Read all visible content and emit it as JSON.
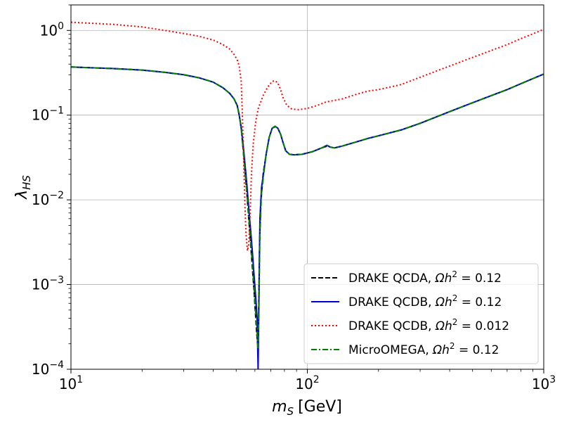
{
  "chart_data": {
    "type": "line",
    "xlabel_main": "m",
    "xlabel_sub": "S",
    "xlabel_unit": "[GeV]",
    "ylabel_main": "λ",
    "ylabel_sub": "HS",
    "xscale": "log",
    "yscale": "log",
    "xlim": [
      10,
      1000
    ],
    "ylim": [
      0.0001,
      2
    ],
    "grid": true,
    "legend_position": "lower-right",
    "x_ticks": [
      {
        "value": 10,
        "base": "10",
        "exp": "1"
      },
      {
        "value": 100,
        "base": "10",
        "exp": "2"
      },
      {
        "value": 1000,
        "base": "10",
        "exp": "3"
      }
    ],
    "y_ticks": [
      {
        "value": 0.0001,
        "base": "10",
        "exp": "−4"
      },
      {
        "value": 0.001,
        "base": "10",
        "exp": "−3"
      },
      {
        "value": 0.01,
        "base": "10",
        "exp": "−2"
      },
      {
        "value": 0.1,
        "base": "10",
        "exp": "−1"
      },
      {
        "value": 1,
        "base": "10",
        "exp": "0"
      }
    ],
    "series": [
      {
        "name": "DRAKE QCDA, Ωh² = 0.12",
        "legend_prefix": "DRAKE QCDA, ",
        "legend_math": "Ωh",
        "legend_sup": "2",
        "legend_suffix": " = 0.12",
        "color": "#000000",
        "style": "dashed",
        "points": [
          [
            10,
            0.37
          ],
          [
            15,
            0.355
          ],
          [
            20,
            0.34
          ],
          [
            25,
            0.32
          ],
          [
            30,
            0.3
          ],
          [
            35,
            0.275
          ],
          [
            40,
            0.245
          ],
          [
            44,
            0.21
          ],
          [
            47,
            0.18
          ],
          [
            49,
            0.155
          ],
          [
            50.5,
            0.13
          ],
          [
            51.5,
            0.1
          ],
          [
            52.5,
            0.07
          ],
          [
            53.5,
            0.04
          ],
          [
            54.5,
            0.022
          ],
          [
            55.5,
            0.012
          ],
          [
            56.5,
            0.006
          ],
          [
            57.5,
            0.0032
          ],
          [
            58.5,
            0.0016
          ],
          [
            59.5,
            0.00085
          ],
          [
            60.5,
            0.0004
          ],
          [
            61,
            0.00028
          ],
          [
            61.6,
            0.0002
          ],
          [
            62.2,
            0.0004
          ],
          [
            62.8,
            0.003
          ],
          [
            63.5,
            0.009
          ],
          [
            65,
            0.02
          ],
          [
            67,
            0.035
          ],
          [
            69,
            0.055
          ],
          [
            71,
            0.07
          ],
          [
            73,
            0.073
          ],
          [
            75,
            0.07
          ],
          [
            77,
            0.06
          ],
          [
            79,
            0.047
          ],
          [
            81,
            0.038
          ],
          [
            84,
            0.0345
          ],
          [
            88,
            0.034
          ],
          [
            95,
            0.0345
          ],
          [
            105,
            0.037
          ],
          [
            115,
            0.041
          ],
          [
            121,
            0.043
          ],
          [
            125,
            0.042
          ],
          [
            130,
            0.041
          ],
          [
            140,
            0.043
          ],
          [
            160,
            0.048
          ],
          [
            180,
            0.053
          ],
          [
            200,
            0.057
          ],
          [
            250,
            0.067
          ],
          [
            300,
            0.08
          ],
          [
            400,
            0.11
          ],
          [
            500,
            0.14
          ],
          [
            600,
            0.17
          ],
          [
            700,
            0.2
          ],
          [
            800,
            0.235
          ],
          [
            900,
            0.27
          ],
          [
            1000,
            0.305
          ]
        ]
      },
      {
        "name": "DRAKE QCDB, Ωh² = 0.12",
        "legend_prefix": "DRAKE QCDB, ",
        "legend_math": "Ωh",
        "legend_sup": "2",
        "legend_suffix": " = 0.12",
        "color": "#0000cc",
        "style": "solid",
        "points": [
          [
            10,
            0.37
          ],
          [
            15,
            0.355
          ],
          [
            20,
            0.34
          ],
          [
            25,
            0.32
          ],
          [
            30,
            0.3
          ],
          [
            35,
            0.275
          ],
          [
            40,
            0.245
          ],
          [
            44,
            0.21
          ],
          [
            47,
            0.18
          ],
          [
            49,
            0.155
          ],
          [
            50.5,
            0.13
          ],
          [
            51.5,
            0.1
          ],
          [
            52.5,
            0.072
          ],
          [
            53.5,
            0.045
          ],
          [
            54.5,
            0.026
          ],
          [
            55.5,
            0.015
          ],
          [
            56.5,
            0.008
          ],
          [
            57.5,
            0.0045
          ],
          [
            58.5,
            0.0025
          ],
          [
            59.5,
            0.0013
          ],
          [
            60.5,
            0.0007
          ],
          [
            61.3,
            0.0004
          ],
          [
            61.9,
            0.0001
          ],
          [
            62.5,
            0.001
          ],
          [
            63,
            0.006
          ],
          [
            64,
            0.014
          ],
          [
            65.5,
            0.022
          ],
          [
            67,
            0.035
          ],
          [
            69,
            0.055
          ],
          [
            71,
            0.07
          ],
          [
            73,
            0.074
          ],
          [
            75,
            0.07
          ],
          [
            77,
            0.06
          ],
          [
            79,
            0.047
          ],
          [
            81,
            0.038
          ],
          [
            84,
            0.0345
          ],
          [
            88,
            0.034
          ],
          [
            95,
            0.0345
          ],
          [
            105,
            0.037
          ],
          [
            115,
            0.041
          ],
          [
            121,
            0.044
          ],
          [
            125,
            0.042
          ],
          [
            130,
            0.041
          ],
          [
            140,
            0.043
          ],
          [
            160,
            0.048
          ],
          [
            180,
            0.053
          ],
          [
            200,
            0.057
          ],
          [
            250,
            0.067
          ],
          [
            300,
            0.08
          ],
          [
            400,
            0.11
          ],
          [
            500,
            0.14
          ],
          [
            600,
            0.17
          ],
          [
            700,
            0.2
          ],
          [
            800,
            0.235
          ],
          [
            900,
            0.27
          ],
          [
            1000,
            0.305
          ]
        ]
      },
      {
        "name": "DRAKE QCDB, Ωh² = 0.012",
        "legend_prefix": "DRAKE QCDB, ",
        "legend_math": "Ωh",
        "legend_sup": "2",
        "legend_suffix": " = 0.012",
        "color": "#ff0000",
        "style": "dotted",
        "points": [
          [
            10,
            1.25
          ],
          [
            15,
            1.18
          ],
          [
            20,
            1.1
          ],
          [
            25,
            1.0
          ],
          [
            30,
            0.92
          ],
          [
            35,
            0.85
          ],
          [
            40,
            0.77
          ],
          [
            44,
            0.68
          ],
          [
            47,
            0.6
          ],
          [
            49,
            0.52
          ],
          [
            50.5,
            0.45
          ],
          [
            51.5,
            0.38
          ],
          [
            52.5,
            0.25
          ],
          [
            53,
            0.12
          ],
          [
            53.5,
            0.05
          ],
          [
            54,
            0.02
          ],
          [
            54.5,
            0.008
          ],
          [
            55,
            0.004
          ],
          [
            55.8,
            0.0025
          ],
          [
            56.5,
            0.003
          ],
          [
            57.3,
            0.007
          ],
          [
            58,
            0.02
          ],
          [
            59,
            0.045
          ],
          [
            60.5,
            0.085
          ],
          [
            62,
            0.12
          ],
          [
            65,
            0.17
          ],
          [
            68,
            0.215
          ],
          [
            71,
            0.25
          ],
          [
            73,
            0.255
          ],
          [
            75,
            0.24
          ],
          [
            77,
            0.2
          ],
          [
            79,
            0.16
          ],
          [
            82,
            0.13
          ],
          [
            86,
            0.118
          ],
          [
            92,
            0.116
          ],
          [
            100,
            0.12
          ],
          [
            110,
            0.13
          ],
          [
            120,
            0.143
          ],
          [
            140,
            0.155
          ],
          [
            160,
            0.175
          ],
          [
            180,
            0.192
          ],
          [
            200,
            0.2
          ],
          [
            250,
            0.23
          ],
          [
            300,
            0.28
          ],
          [
            400,
            0.38
          ],
          [
            500,
            0.48
          ],
          [
            600,
            0.58
          ],
          [
            700,
            0.68
          ],
          [
            800,
            0.8
          ],
          [
            900,
            0.91
          ],
          [
            1000,
            1.03
          ]
        ]
      },
      {
        "name": "MicroOMEGA, Ωh² = 0.12",
        "legend_prefix": "MicroOMEGA, ",
        "legend_math": "Ωh",
        "legend_sup": "2",
        "legend_suffix": " = 0.12",
        "color": "#008000",
        "style": "dashdot",
        "points": [
          [
            10,
            0.37
          ],
          [
            15,
            0.355
          ],
          [
            20,
            0.34
          ],
          [
            25,
            0.32
          ],
          [
            30,
            0.3
          ],
          [
            35,
            0.275
          ],
          [
            40,
            0.245
          ],
          [
            44,
            0.21
          ],
          [
            47,
            0.18
          ],
          [
            49,
            0.155
          ],
          [
            50.5,
            0.13
          ],
          [
            51.5,
            0.1
          ],
          [
            52.5,
            0.07
          ],
          [
            53.5,
            0.04
          ],
          [
            54.5,
            0.022
          ],
          [
            55.5,
            0.012
          ],
          [
            56.5,
            0.0065
          ],
          [
            57.5,
            0.0035
          ],
          [
            58.5,
            0.0018
          ],
          [
            59.5,
            0.00095
          ],
          [
            60.5,
            0.00045
          ],
          [
            61.2,
            0.0003
          ],
          [
            61.8,
            0.00018
          ],
          [
            62.4,
            0.0005
          ],
          [
            63,
            0.004
          ],
          [
            64,
            0.012
          ],
          [
            65.5,
            0.021
          ],
          [
            67,
            0.035
          ],
          [
            69,
            0.055
          ],
          [
            71,
            0.07
          ],
          [
            73,
            0.074
          ],
          [
            75,
            0.07
          ],
          [
            77,
            0.06
          ],
          [
            79,
            0.047
          ],
          [
            81,
            0.038
          ],
          [
            84,
            0.0345
          ],
          [
            88,
            0.034
          ],
          [
            95,
            0.0345
          ],
          [
            105,
            0.037
          ],
          [
            115,
            0.041
          ],
          [
            121,
            0.044
          ],
          [
            125,
            0.042
          ],
          [
            130,
            0.041
          ],
          [
            140,
            0.043
          ],
          [
            160,
            0.048
          ],
          [
            180,
            0.053
          ],
          [
            200,
            0.057
          ],
          [
            250,
            0.067
          ],
          [
            300,
            0.08
          ],
          [
            400,
            0.11
          ],
          [
            500,
            0.14
          ],
          [
            600,
            0.17
          ],
          [
            700,
            0.2
          ],
          [
            800,
            0.235
          ],
          [
            900,
            0.27
          ],
          [
            1000,
            0.305
          ]
        ]
      }
    ]
  }
}
